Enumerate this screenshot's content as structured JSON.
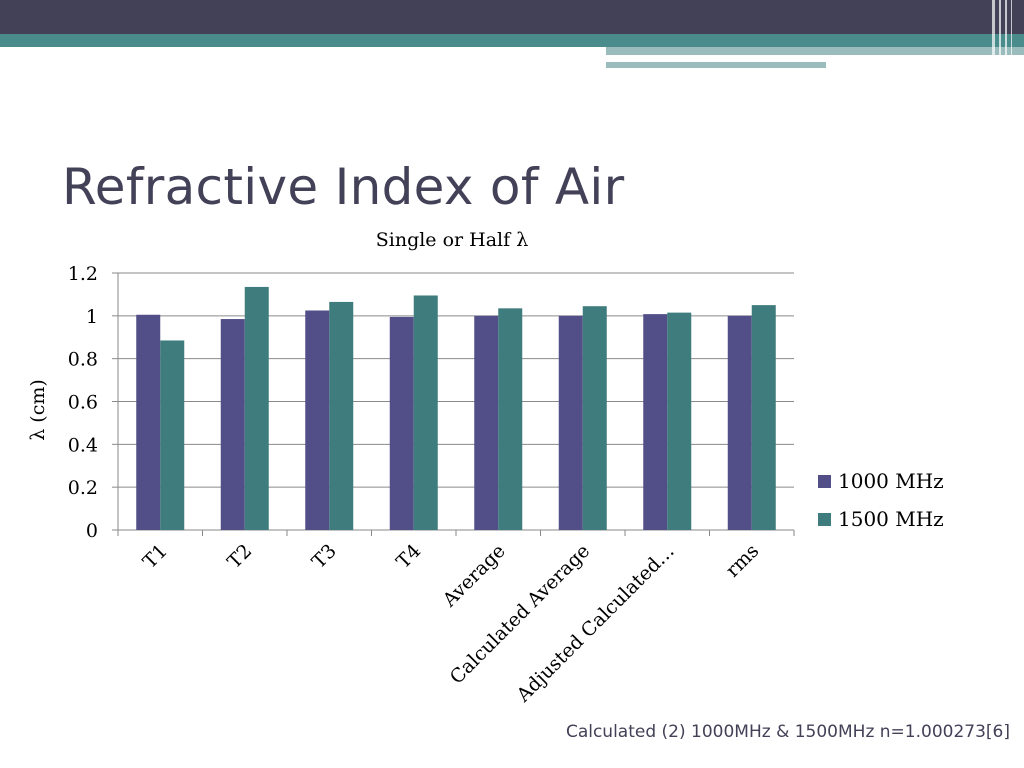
{
  "slide": {
    "title": "Refractive Index of Air",
    "footnote": "Calculated (2) 1000MHz & 1500MHz n=1.000273[6]"
  },
  "colors": {
    "series1": "#524f88",
    "series2": "#3f7c7d",
    "header_dark": "#434157",
    "header_accent": "#4a8c8c"
  },
  "chart_data": {
    "type": "bar",
    "title": "Single or Half λ",
    "ylabel": "λ (cm)",
    "xlabel": "",
    "ylim": [
      0,
      1.2
    ],
    "yticks": [
      "0",
      "0.2",
      "0.4",
      "0.6",
      "0.8",
      "1",
      "1.2"
    ],
    "grid": true,
    "legend_position": "right",
    "categories": [
      "T1",
      "T2",
      "T3",
      "T4",
      "Average",
      "Calculated Average",
      "Adjusted Calculated…",
      "rms"
    ],
    "series": [
      {
        "name": "1000 MHz",
        "values": [
          1.005,
          0.985,
          1.025,
          0.995,
          1.0,
          1.0,
          1.008,
          1.0
        ]
      },
      {
        "name": "1500 MHz",
        "values": [
          0.885,
          1.135,
          1.065,
          1.095,
          1.035,
          1.045,
          1.015,
          1.05
        ]
      }
    ]
  }
}
